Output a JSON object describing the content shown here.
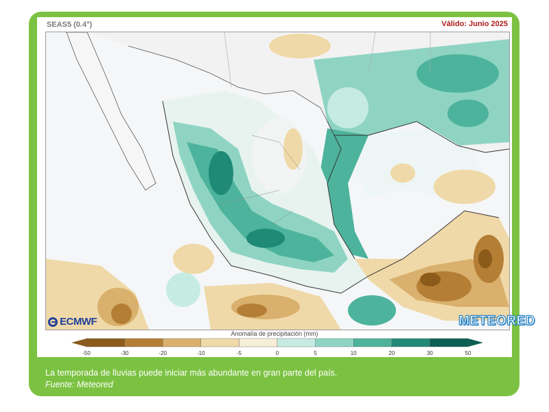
{
  "map": {
    "model": "SEAS5 (0.4°)",
    "valid": "Válido: Junio 2025",
    "brand_left": "ECMWF",
    "brand_right": "METEORED"
  },
  "legend": {
    "title": "Anomalía de precipitación (mm)",
    "ticks": [
      "-50",
      "-30",
      "-20",
      "-10",
      "-5",
      "0",
      "5",
      "10",
      "20",
      "30",
      "50"
    ],
    "colors": [
      "#8c5a1a",
      "#b47e35",
      "#d9b06d",
      "#f0d9a8",
      "#f7eed8",
      "#eef6f5",
      "#c6ebe2",
      "#8fd4c3",
      "#4db39c",
      "#1f8a76",
      "#0d5f52"
    ]
  },
  "caption": {
    "text": "La temporada de lluvias puede iniciar más abundante en gran parte del país.",
    "source": "Fuente: Meteored"
  }
}
